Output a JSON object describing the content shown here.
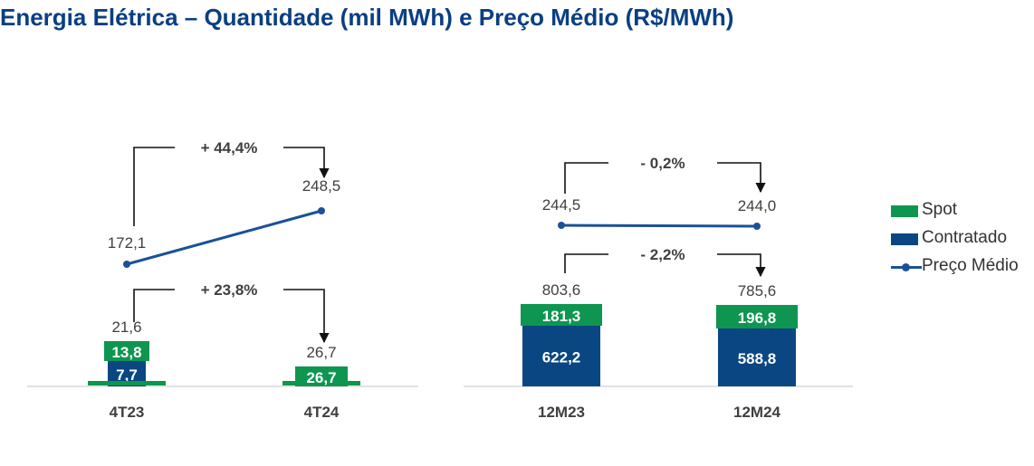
{
  "title": "Energia Elétrica – Quantidade (mil MWh) e Preço Médio (R$/MWh)",
  "colors": {
    "spot": "#0e9651",
    "contratado": "#0a4682",
    "preco": "#1a5199",
    "title": "#0a3f82"
  },
  "legend": [
    {
      "label": "Spot",
      "icon": "green-square"
    },
    {
      "label": "Contratado",
      "icon": "blue-square"
    },
    {
      "label": "Preço Médio",
      "icon": "line-marker"
    }
  ],
  "chart_data": [
    {
      "type": "bar",
      "stacked": true,
      "categories": [
        "4T23",
        "4T24"
      ],
      "series": [
        {
          "name": "Contratado",
          "values": [
            7.7,
            0
          ]
        },
        {
          "name": "Spot",
          "values": [
            13.8,
            26.7
          ]
        }
      ],
      "totals": [
        "21,6",
        "26,7"
      ],
      "bar_labels": {
        "Contratado": [
          "7,7",
          ""
        ],
        "Spot": [
          "13,8",
          "26,7"
        ]
      },
      "price": {
        "name": "Preço Médio",
        "values": [
          172.1,
          248.5
        ],
        "labels": [
          "172,1",
          "248,5"
        ]
      },
      "price_change": "+ 44,4%",
      "volume_change": "+ 23,8%"
    },
    {
      "type": "bar",
      "stacked": true,
      "categories": [
        "12M23",
        "12M24"
      ],
      "series": [
        {
          "name": "Contratado",
          "values": [
            622.2,
            588.8
          ]
        },
        {
          "name": "Spot",
          "values": [
            181.3,
            196.8
          ]
        }
      ],
      "totals": [
        "803,6",
        "785,6"
      ],
      "bar_labels": {
        "Contratado": [
          "622,2",
          "588,8"
        ],
        "Spot": [
          "181,3",
          "196,8"
        ]
      },
      "price": {
        "name": "Preço Médio",
        "values": [
          244.5,
          244.0
        ],
        "labels": [
          "244,5",
          "244,0"
        ]
      },
      "price_change": "- 0,2%",
      "volume_change": "- 2,2%"
    }
  ]
}
